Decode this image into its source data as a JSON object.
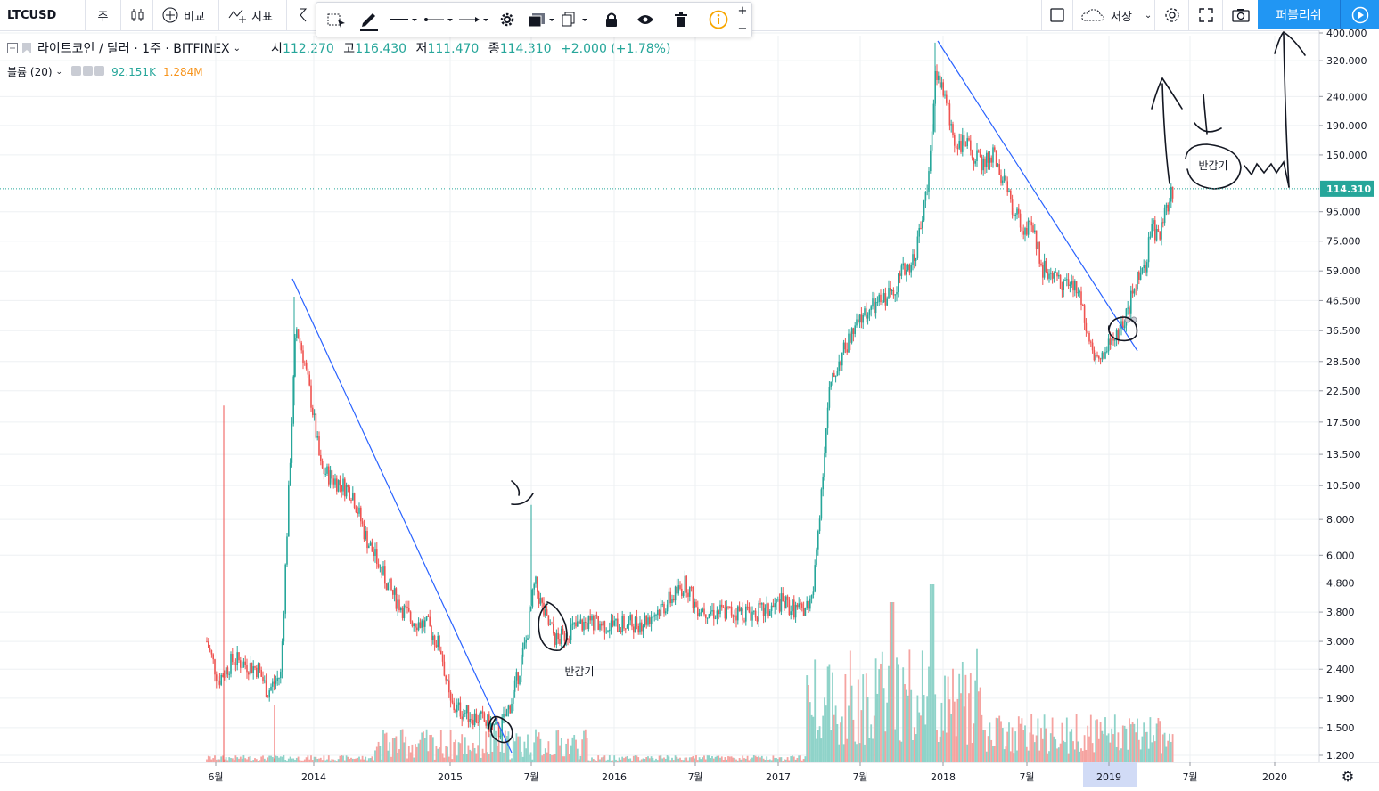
{
  "toolbar": {
    "symbol": "LTCUSD",
    "interval": "주",
    "compare": "비교",
    "indicators": "지표",
    "save": "저장",
    "publish": "퍼블리쉬"
  },
  "legend": {
    "title": "라이트코인 / 달러 · 1주 · BITFINEX",
    "o_label": "시",
    "o": "112.270",
    "h_label": "고",
    "h": "116.430",
    "l_label": "저",
    "l": "111.470",
    "c_label": "종",
    "c": "114.310",
    "change": "+2.000 (+1.78%)",
    "volume_label": "볼륨 (20)",
    "vol_ma": "92.151K",
    "vol_value": "1.284M"
  },
  "colors": {
    "up": "#26a69a",
    "down": "#ef5350",
    "vol_up": "#8fd3c9",
    "vol_down": "#f5a3a0",
    "trendline": "#2962ff",
    "accent": "#2196f3"
  },
  "chart_data": {
    "type": "candlestick",
    "scale": "log",
    "ylim": [
      1.2,
      400
    ],
    "y_ticks": [
      "400.000",
      "320.000",
      "240.000",
      "190.000",
      "150.000",
      "95.000",
      "75.000",
      "59.000",
      "46.500",
      "36.500",
      "28.500",
      "22.500",
      "17.500",
      "13.500",
      "10.500",
      "8.000",
      "6.000",
      "4.800",
      "3.800",
      "3.000",
      "2.400",
      "1.900",
      "1.500",
      "1.200"
    ],
    "x_ticks": [
      "6월",
      "2014",
      "2015",
      "7월",
      "2016",
      "7월",
      "2017",
      "7월",
      "2018",
      "7월",
      "2019",
      "7월",
      "2020"
    ],
    "last_price": "114.310",
    "annotations": [
      "반감기",
      "반감기"
    ],
    "series": [
      {
        "segment": "2013-06 to 2013-11",
        "approx_close": [
          3.0,
          2.4,
          2.6,
          2.5,
          2.3,
          2.1,
          3.5
        ]
      },
      {
        "segment": "2013-11 peak",
        "approx_high": 48
      },
      {
        "segment": "2014 decline",
        "approx_close": [
          30,
          20,
          12,
          11,
          8,
          5.5,
          4.2,
          3.8,
          3.4,
          2.8,
          2.0,
          1.6
        ]
      },
      {
        "segment": "2015 bottom",
        "approx_low": 1.3
      },
      {
        "segment": "2015-07 spike",
        "approx_high": 9.0
      },
      {
        "segment": "2016 range",
        "approx_close": [
          3.2,
          3.5,
          3.6,
          4.8,
          4.0,
          3.8,
          3.8,
          3.9
        ]
      },
      {
        "segment": "2017 rally",
        "approx_close": [
          4.0,
          15,
          28,
          45,
          50,
          60,
          90
        ]
      },
      {
        "segment": "2017-12 peak",
        "approx_high": 370
      },
      {
        "segment": "2018 decline",
        "approx_close": [
          220,
          150,
          120,
          85,
          60,
          50,
          35,
          30
        ]
      },
      {
        "segment": "2019 rally",
        "approx_close": [
          32,
          45,
          60,
          85,
          114.31
        ]
      }
    ]
  }
}
